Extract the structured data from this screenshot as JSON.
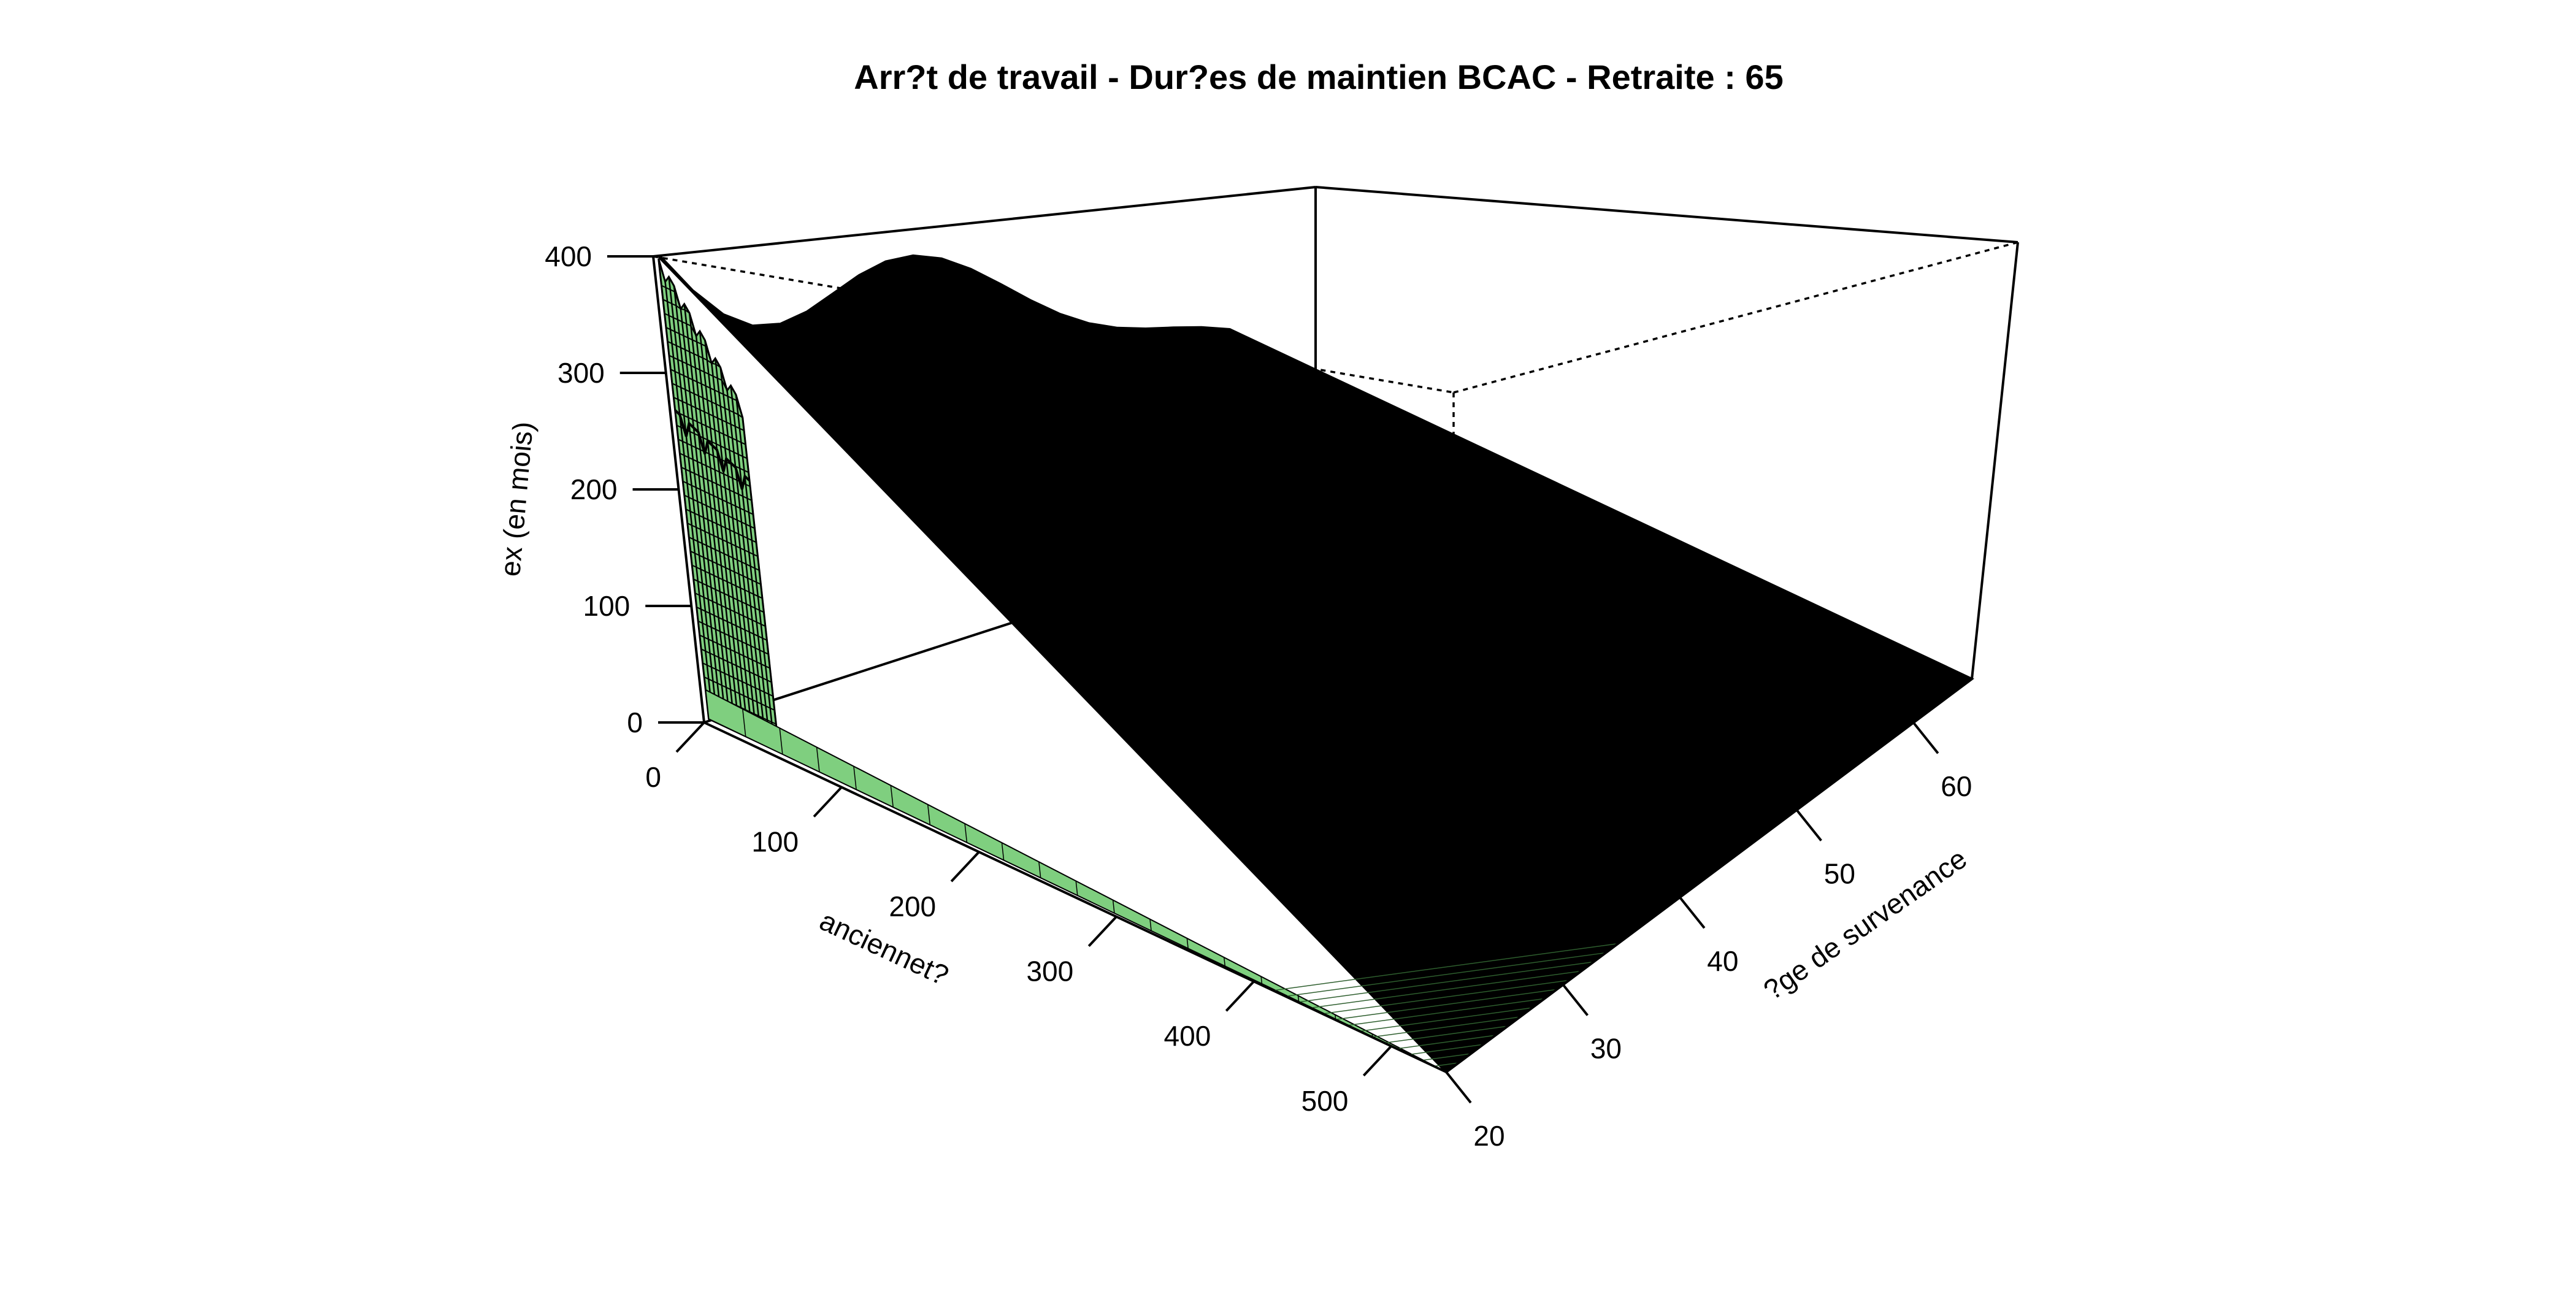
{
  "chart_data": {
    "type": "surface3d",
    "title": "Arr?t de travail - Dur?es de maintien BCAC - Retraite : 65",
    "zlabel": "ex (en mois)",
    "xlabel": "anciennet?",
    "ylabel": "?ge de survenance",
    "x_ticks": [
      "0",
      "100",
      "200",
      "300",
      "400",
      "500"
    ],
    "y_ticks": [
      "20",
      "30",
      "40",
      "50",
      "60"
    ],
    "z_ticks": [
      "0",
      "100",
      "200",
      "300",
      "400"
    ],
    "xlim": [
      0,
      540
    ],
    "ylim": [
      20,
      65
    ],
    "zlim": [
      0,
      400
    ],
    "surface_color": "#7fcf7f",
    "edge_color": "#000000",
    "surface": {
      "description_points": [
        {
          "anciennete": 0,
          "age": 20,
          "ex": 0
        },
        {
          "anciennete": 0,
          "age": 65,
          "ex": 0
        },
        {
          "anciennete": 540,
          "age": 20,
          "ex": 0
        },
        {
          "anciennete": 540,
          "age": 65,
          "ex": 0
        },
        {
          "anciennete": 0,
          "age": 21,
          "ex": 395
        },
        {
          "anciennete": 0,
          "age": 21,
          "ex": 265
        }
      ]
    }
  }
}
